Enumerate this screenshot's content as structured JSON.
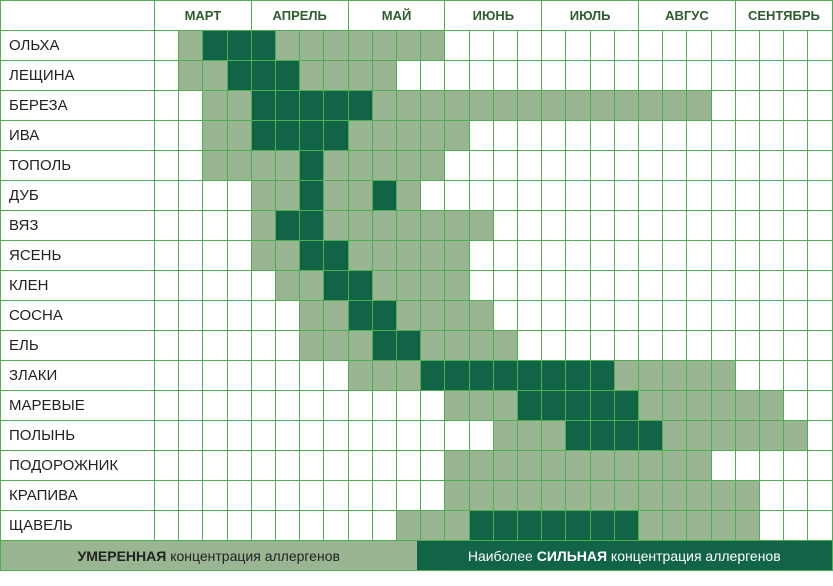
{
  "chart": {
    "type": "heatmap",
    "months": [
      "МАРТ",
      "АПРЕЛЬ",
      "МАЙ",
      "ИЮНЬ",
      "ИЮЛЬ",
      "АВГУС",
      "СЕНТЯБРЬ"
    ],
    "weeks_per_month": 4,
    "row_labels": [
      "ОЛЬХА",
      "ЛЕЩИНА",
      "БЕРЕЗА",
      "ИВА",
      "ТОПОЛЬ",
      "ДУБ",
      "ВЯЗ",
      "ЯСЕНЬ",
      "КЛЕН",
      "СОСНА",
      "ЕЛЬ",
      "ЗЛАКИ",
      "МАРЕВЫЕ",
      "ПОЛЫНЬ",
      "ПОДОРОЖНИК",
      "КРАПИВА",
      "ЩАВЕЛЬ"
    ],
    "colors": {
      "none": "#ffffff",
      "moderate": "#9ab592",
      "high": "#116446",
      "grid": "#4caf50",
      "header_text": "#2e5c2e",
      "label_text": "#222222",
      "legend_high_text": "#ffffff"
    },
    "fontsize": {
      "header": 13,
      "row_label": 15,
      "legend": 14
    },
    "data": [
      [
        0,
        1,
        2,
        2,
        2,
        1,
        1,
        1,
        1,
        1,
        1,
        1,
        0,
        0,
        0,
        0,
        0,
        0,
        0,
        0,
        0,
        0,
        0,
        0,
        0,
        0,
        0,
        0
      ],
      [
        0,
        1,
        1,
        2,
        2,
        2,
        1,
        1,
        1,
        1,
        0,
        0,
        0,
        0,
        0,
        0,
        0,
        0,
        0,
        0,
        0,
        0,
        0,
        0,
        0,
        0,
        0,
        0
      ],
      [
        0,
        0,
        1,
        1,
        2,
        2,
        2,
        2,
        2,
        1,
        1,
        1,
        1,
        1,
        1,
        1,
        1,
        1,
        1,
        1,
        1,
        1,
        1,
        0,
        0,
        0,
        0,
        0
      ],
      [
        0,
        0,
        1,
        1,
        2,
        2,
        2,
        2,
        1,
        1,
        1,
        1,
        1,
        0,
        0,
        0,
        0,
        0,
        0,
        0,
        0,
        0,
        0,
        0,
        0,
        0,
        0,
        0
      ],
      [
        0,
        0,
        1,
        1,
        1,
        1,
        2,
        1,
        1,
        1,
        1,
        1,
        0,
        0,
        0,
        0,
        0,
        0,
        0,
        0,
        0,
        0,
        0,
        0,
        0,
        0,
        0,
        0
      ],
      [
        0,
        0,
        0,
        0,
        1,
        1,
        2,
        1,
        1,
        2,
        1,
        0,
        0,
        0,
        0,
        0,
        0,
        0,
        0,
        0,
        0,
        0,
        0,
        0,
        0,
        0,
        0,
        0
      ],
      [
        0,
        0,
        0,
        0,
        1,
        2,
        2,
        1,
        1,
        1,
        1,
        1,
        1,
        1,
        0,
        0,
        0,
        0,
        0,
        0,
        0,
        0,
        0,
        0,
        0,
        0,
        0,
        0
      ],
      [
        0,
        0,
        0,
        0,
        1,
        1,
        2,
        2,
        1,
        1,
        1,
        1,
        1,
        0,
        0,
        0,
        0,
        0,
        0,
        0,
        0,
        0,
        0,
        0,
        0,
        0,
        0,
        0
      ],
      [
        0,
        0,
        0,
        0,
        0,
        1,
        1,
        2,
        2,
        1,
        1,
        1,
        1,
        0,
        0,
        0,
        0,
        0,
        0,
        0,
        0,
        0,
        0,
        0,
        0,
        0,
        0,
        0
      ],
      [
        0,
        0,
        0,
        0,
        0,
        0,
        1,
        1,
        2,
        2,
        1,
        1,
        1,
        1,
        0,
        0,
        0,
        0,
        0,
        0,
        0,
        0,
        0,
        0,
        0,
        0,
        0,
        0
      ],
      [
        0,
        0,
        0,
        0,
        0,
        0,
        1,
        1,
        1,
        2,
        2,
        1,
        1,
        1,
        1,
        0,
        0,
        0,
        0,
        0,
        0,
        0,
        0,
        0,
        0,
        0,
        0,
        0
      ],
      [
        0,
        0,
        0,
        0,
        0,
        0,
        0,
        0,
        1,
        1,
        1,
        2,
        2,
        2,
        2,
        2,
        2,
        2,
        2,
        1,
        1,
        1,
        1,
        1,
        0,
        0,
        0,
        0
      ],
      [
        0,
        0,
        0,
        0,
        0,
        0,
        0,
        0,
        0,
        0,
        0,
        0,
        1,
        1,
        1,
        2,
        2,
        2,
        2,
        2,
        1,
        1,
        1,
        1,
        1,
        1,
        0,
        0
      ],
      [
        0,
        0,
        0,
        0,
        0,
        0,
        0,
        0,
        0,
        0,
        0,
        0,
        0,
        0,
        1,
        1,
        1,
        2,
        2,
        2,
        2,
        1,
        1,
        1,
        1,
        1,
        1,
        0
      ],
      [
        0,
        0,
        0,
        0,
        0,
        0,
        0,
        0,
        0,
        0,
        0,
        0,
        1,
        1,
        1,
        1,
        1,
        1,
        1,
        1,
        1,
        1,
        1,
        0,
        0,
        0,
        0,
        0
      ],
      [
        0,
        0,
        0,
        0,
        0,
        0,
        0,
        0,
        0,
        0,
        0,
        0,
        1,
        1,
        1,
        1,
        1,
        1,
        1,
        1,
        1,
        1,
        1,
        1,
        1,
        0,
        0,
        0
      ],
      [
        0,
        0,
        0,
        0,
        0,
        0,
        0,
        0,
        0,
        0,
        1,
        1,
        1,
        2,
        2,
        2,
        2,
        2,
        2,
        2,
        1,
        1,
        1,
        1,
        1,
        0,
        0,
        0
      ]
    ],
    "legend": {
      "moderate_prefix": "УМЕРЕННАЯ",
      "moderate_suffix": " концентрация аллергенов",
      "high_prefix": "Наиболее ",
      "high_mid": "СИЛЬНАЯ",
      "high_suffix": " концентрация аллергенов"
    }
  }
}
